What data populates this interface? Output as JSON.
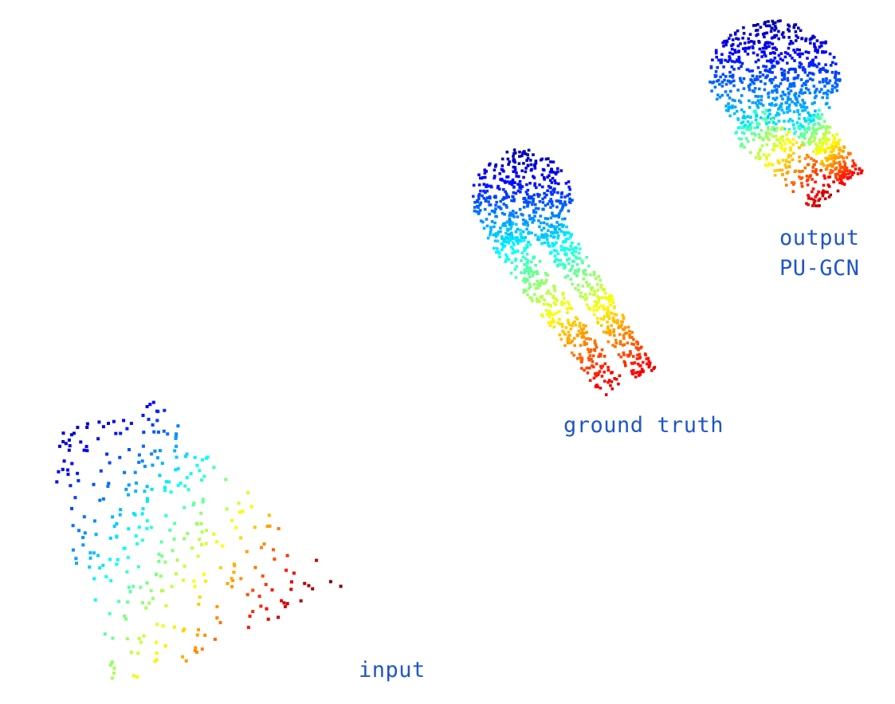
{
  "panels": [
    {
      "key": "input",
      "label": "input",
      "point_count": 330
    },
    {
      "key": "ground_truth",
      "label": "ground truth",
      "point_count": 1100
    },
    {
      "key": "output",
      "label": "output",
      "method": "PU-GCN",
      "point_count": 1100
    }
  ],
  "colormap": {
    "name": "jet",
    "stops": [
      "#00008f",
      "#0000ff",
      "#0080ff",
      "#00ffff",
      "#80ff80",
      "#ffff00",
      "#ff8000",
      "#ff0000",
      "#800000"
    ]
  }
}
